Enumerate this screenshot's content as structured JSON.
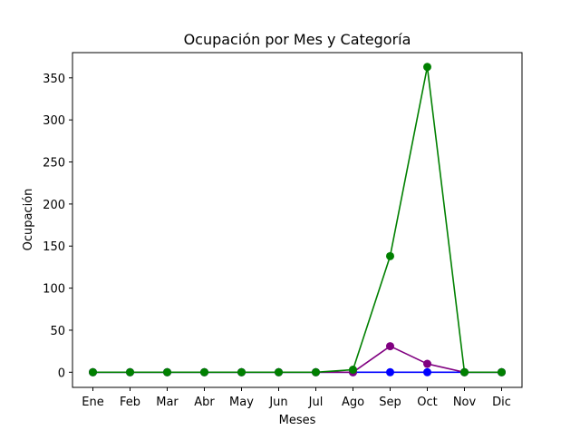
{
  "chart_data": {
    "type": "line",
    "title": "Ocupación por Mes y Categoría",
    "xlabel": "Meses",
    "ylabel": "Ocupación",
    "categories": [
      "Ene",
      "Feb",
      "Mar",
      "Abr",
      "May",
      "Jun",
      "Jul",
      "Ago",
      "Sep",
      "Oct",
      "Nov",
      "Dic"
    ],
    "yticks": [
      0,
      50,
      100,
      150,
      200,
      250,
      300,
      350
    ],
    "ylim": [
      -18,
      380
    ],
    "grid": false,
    "series": [
      {
        "color": "#0000ff",
        "marker": "circle",
        "values": [
          0,
          0,
          0,
          0,
          0,
          0,
          0,
          0,
          0,
          0,
          0,
          0
        ]
      },
      {
        "color": "#800080",
        "marker": "circle",
        "values": [
          0,
          0,
          0,
          0,
          0,
          0,
          0,
          0,
          31,
          10,
          0,
          0
        ]
      },
      {
        "color": "#008000",
        "marker": "circle",
        "values": [
          0,
          0,
          0,
          0,
          0,
          0,
          0,
          3,
          138,
          363,
          0,
          0
        ]
      }
    ]
  }
}
